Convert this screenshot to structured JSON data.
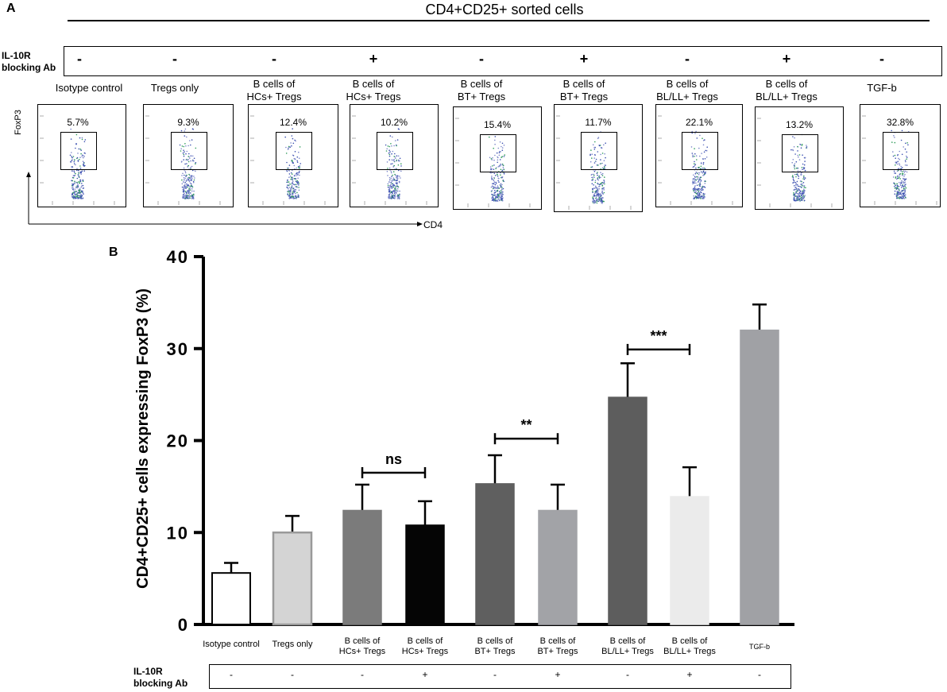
{
  "panel_a": {
    "letter": "A",
    "header": "CD4+CD25+ sorted cells",
    "blocking_label_line1": "IL-10R",
    "blocking_label_line2": "blocking Ab",
    "y_axis_label": "FoxP3",
    "x_axis_label": "CD4",
    "plots": [
      {
        "label_line1": "Isotype control",
        "label_line2": "",
        "blocking": "-",
        "percent": "5.7%"
      },
      {
        "label_line1": "Tregs only",
        "label_line2": "",
        "blocking": "-",
        "percent": "9.3%"
      },
      {
        "label_line1": "B cells of",
        "label_line2": "HCs+ Tregs",
        "blocking": "-",
        "percent": "12.4%"
      },
      {
        "label_line1": "B cells of",
        "label_line2": "HCs+ Tregs",
        "blocking": "+",
        "percent": "10.2%"
      },
      {
        "label_line1": "B cells of",
        "label_line2": "BT+ Tregs",
        "blocking": "-",
        "percent": "15.4%"
      },
      {
        "label_line1": "B cells of",
        "label_line2": "BT+ Tregs",
        "blocking": "+",
        "percent": "11.7%"
      },
      {
        "label_line1": "B cells of",
        "label_line2": "BL/LL+ Tregs",
        "blocking": "-",
        "percent": "22.1%"
      },
      {
        "label_line1": "B cells of",
        "label_line2": "BL/LL+ Tregs",
        "blocking": "+",
        "percent": "13.2%"
      },
      {
        "label_line1": "TGF-b",
        "label_line2": "",
        "blocking": "-",
        "percent": "32.8%"
      }
    ]
  },
  "panel_b": {
    "letter": "B",
    "blocking_label_line1": "IL-10R",
    "blocking_label_line2": "blocking Ab"
  },
  "chart_data": {
    "type": "bar",
    "title": "",
    "xlabel": "",
    "ylabel": "CD4+CD25+ cells expressing FoxP3 (%)",
    "ylim": [
      0,
      40
    ],
    "yticks": [
      "0",
      "10",
      "20",
      "30",
      "40"
    ],
    "grid": false,
    "categories": [
      {
        "line1": "Isotype control",
        "line2": ""
      },
      {
        "line1": "Tregs only",
        "line2": ""
      },
      {
        "line1": "B cells of",
        "line2": "HCs+ Tregs"
      },
      {
        "line1": "B cells of",
        "line2": "HCs+ Tregs"
      },
      {
        "line1": "B cells of",
        "line2": "BT+ Tregs"
      },
      {
        "line1": "B cells of",
        "line2": "BT+ Tregs"
      },
      {
        "line1": "B cells of",
        "line2": "BL/LL+ Tregs"
      },
      {
        "line1": "B cells of",
        "line2": "BL/LL+ Tregs"
      },
      {
        "line1": "TGF-b",
        "line2": ""
      }
    ],
    "values": [
      5.6,
      10.0,
      12.4,
      10.8,
      15.3,
      12.4,
      24.7,
      13.9,
      32.0
    ],
    "errors": [
      1.1,
      1.8,
      2.8,
      2.6,
      3.1,
      2.8,
      3.7,
      3.2,
      2.8
    ],
    "fills": [
      "#ffffff",
      "#d4d4d4",
      "#7b7b7b",
      "#050505",
      "#5f5f5f",
      "#a2a3a7",
      "#5d5d5d",
      "#ebebeb",
      "#a0a1a5"
    ],
    "strokes": [
      "#000000",
      "#9a9a9a",
      "#7b7b7b",
      "#050505",
      "#5f5f5f",
      "#a2a3a7",
      "#5d5d5d",
      "#ebebeb",
      "#a0a1a5"
    ],
    "blocking": [
      "-",
      "-",
      "-",
      "+",
      "-",
      "+",
      "-",
      "+",
      "-"
    ],
    "significance": [
      {
        "from": 2,
        "to": 3,
        "label": "ns",
        "level": 16.5
      },
      {
        "from": 4,
        "to": 5,
        "label": "**",
        "level": 20.2
      },
      {
        "from": 6,
        "to": 7,
        "label": "***",
        "level": 29.9
      }
    ]
  }
}
